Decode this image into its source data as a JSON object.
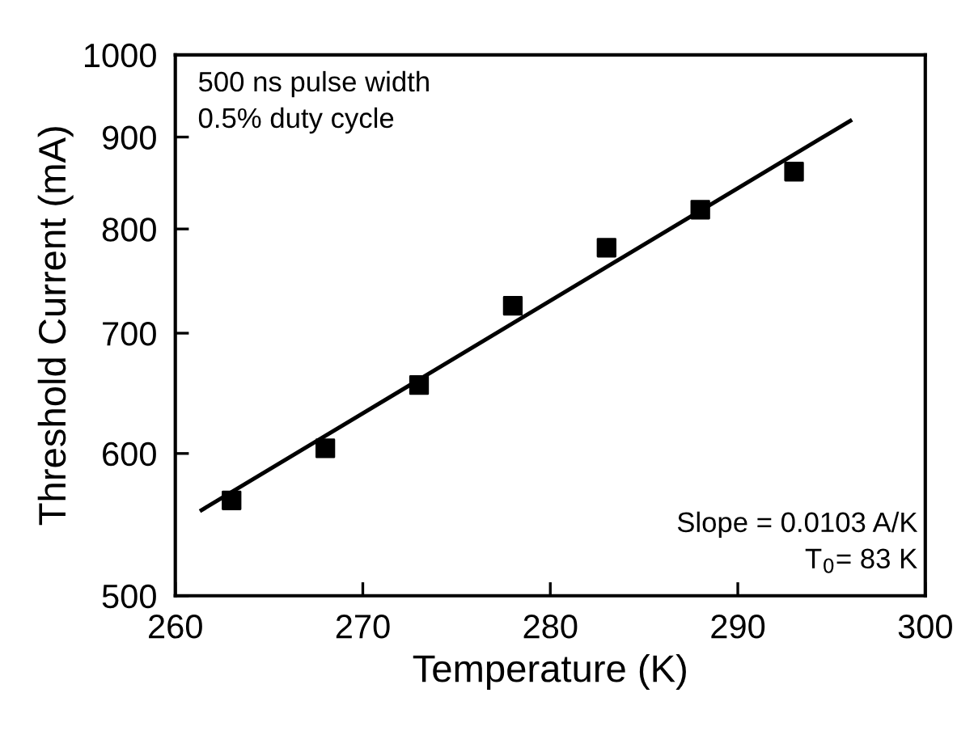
{
  "chart_data": {
    "type": "scatter",
    "xlabel": "Temperature (K)",
    "ylabel": "Threshold Current (mA)",
    "log": "y",
    "xlim": [
      260,
      300
    ],
    "xticks": [
      260,
      270,
      280,
      290,
      300
    ],
    "ylim": [
      500,
      1000
    ],
    "yticks": [
      500,
      600,
      700,
      800,
      900,
      1000
    ],
    "grid": false,
    "legend": false,
    "marker": "square",
    "series": [
      {
        "color": "#000000",
        "x": [
          263,
          268,
          273,
          278,
          283,
          288,
          293
        ],
        "values": [
          565,
          604,
          655,
          725,
          781,
          820,
          861
        ]
      },
      {
        "type": "line",
        "color": "#000000",
        "line_style": "solid",
        "marker": "none",
        "x": [
          261.4,
          296.0
        ],
        "values": [
          558,
          919
        ]
      }
    ],
    "annotations": [
      "500 ns pulse width\n0.5% duty cycle",
      "Slope = 0.0103 A/K\nT$_{0}$= 83 K"
    ]
  }
}
